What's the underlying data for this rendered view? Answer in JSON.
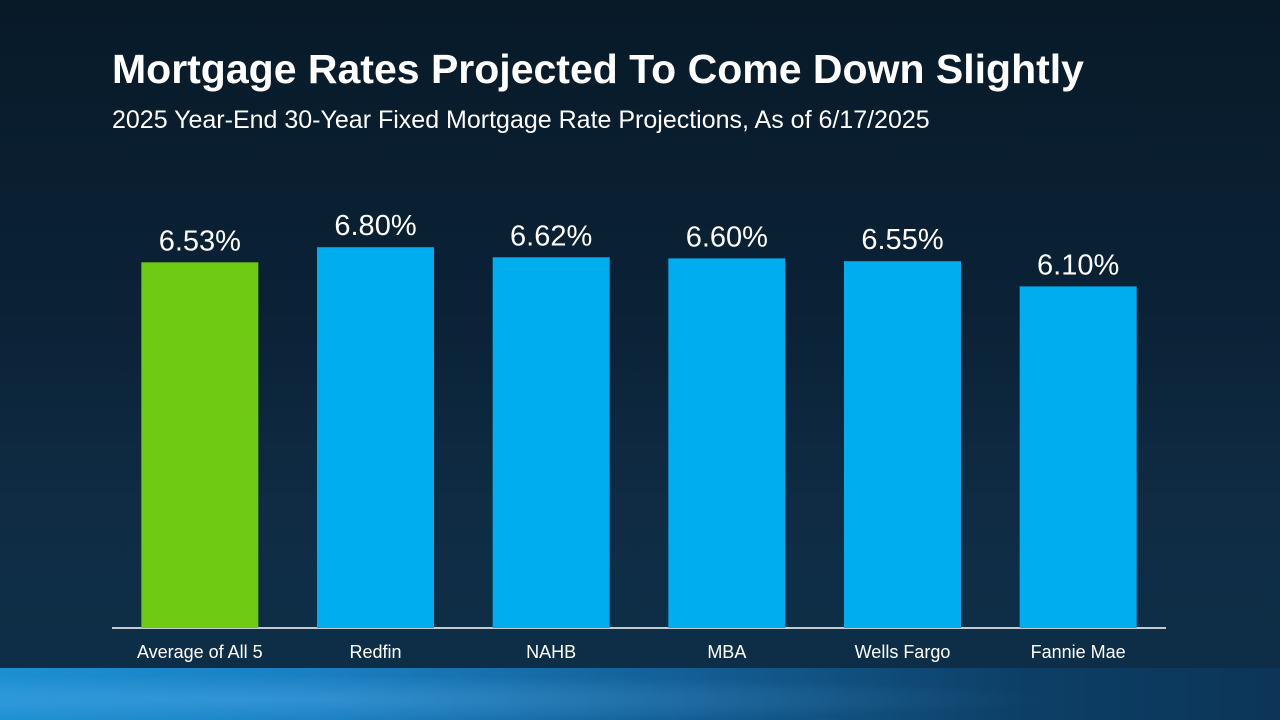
{
  "colors": {
    "highlight_bar": "#6fca14",
    "bar": "#00aeef",
    "axis": "#ffffff",
    "text": "#ffffff"
  },
  "chart_data": {
    "type": "bar",
    "title": "Mortgage Rates Projected To Come Down Slightly",
    "subtitle": "2025 Year-End 30-Year Fixed Mortgage Rate Projections, As of 6/17/2025",
    "categories": [
      "Average of All 5",
      "Redfin",
      "NAHB",
      "MBA",
      "Wells Fargo",
      "Fannie Mae"
    ],
    "values": [
      6.53,
      6.8,
      6.62,
      6.6,
      6.55,
      6.1
    ],
    "value_labels": [
      "6.53%",
      "6.80%",
      "6.62%",
      "6.60%",
      "6.55%",
      "6.10%"
    ],
    "highlight_index": 0,
    "ylim": [
      0,
      7
    ],
    "xlabel": "",
    "ylabel": "",
    "grid": false,
    "legend": "none"
  }
}
